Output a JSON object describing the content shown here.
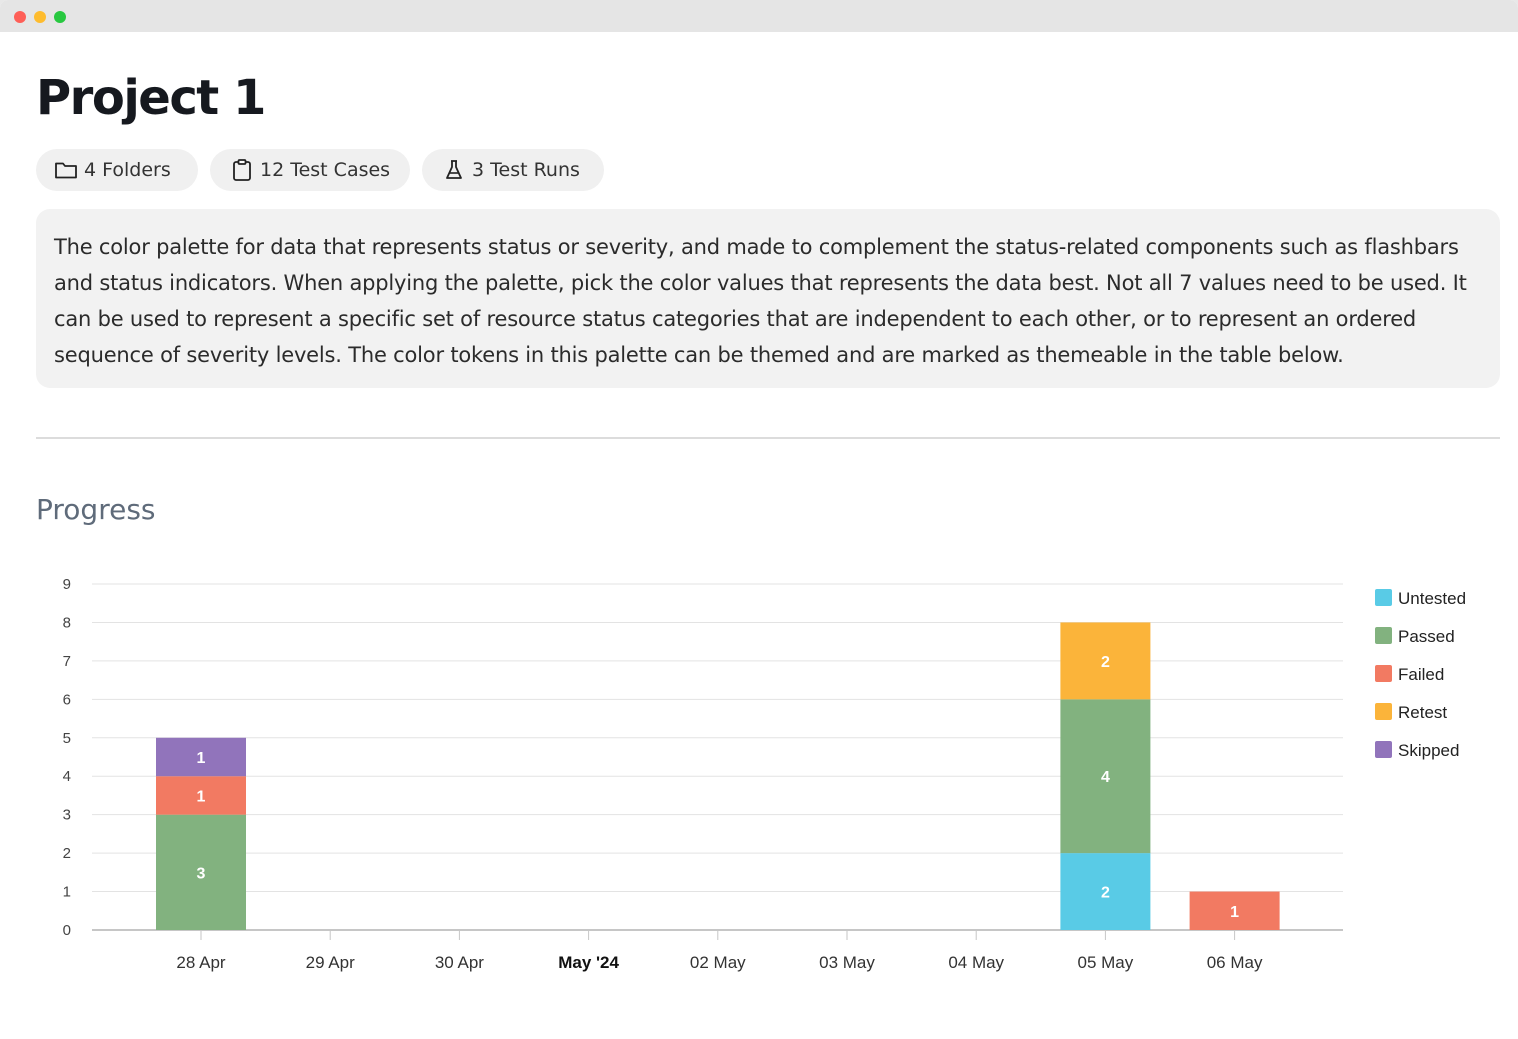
{
  "project": {
    "title": "Project 1",
    "stats": {
      "folders": "4 Folders",
      "test_cases": "12 Test Cases",
      "test_runs": "3 Test Runs"
    },
    "description": "The color palette for data that represents status or severity, and made to complement the status-related components such as flashbars and status indicators. When applying the palette, pick the color values that represents the data best. Not all 7 values need to be used. It can be used to represent a specific set of resource status categories that are independent to each other, or to represent an ordered sequence of severity levels. The color tokens in this palette can be themed and are marked as themeable in the table below."
  },
  "progress": {
    "title": "Progress"
  },
  "icons": {
    "folders": "folder-icon",
    "test_cases": "clipboard-icon",
    "test_runs": "flask-icon"
  },
  "chart_data": {
    "type": "bar",
    "stacked": true,
    "categories": [
      "28 Apr",
      "29 Apr",
      "30 Apr",
      "May '24",
      "02 May",
      "03 May",
      "04 May",
      "05 May",
      "06 May"
    ],
    "bold_categories": [
      "May '24"
    ],
    "ylim": [
      0,
      9
    ],
    "yticks": [
      0,
      1,
      2,
      3,
      4,
      5,
      6,
      7,
      8,
      9
    ],
    "grid": true,
    "legend_position": "right",
    "series": [
      {
        "name": "Untested",
        "color": "#59cbe6",
        "values": [
          0,
          0,
          0,
          0,
          0,
          0,
          0,
          2,
          0
        ]
      },
      {
        "name": "Passed",
        "color": "#82b27f",
        "values": [
          3,
          0,
          0,
          0,
          0,
          0,
          0,
          4,
          0
        ]
      },
      {
        "name": "Failed",
        "color": "#f27a62",
        "values": [
          1,
          0,
          0,
          0,
          0,
          0,
          0,
          0,
          1
        ]
      },
      {
        "name": "Retest",
        "color": "#fbb43a",
        "values": [
          0,
          0,
          0,
          0,
          0,
          0,
          0,
          2,
          0
        ]
      },
      {
        "name": "Skipped",
        "color": "#9174bb",
        "values": [
          1,
          0,
          0,
          0,
          0,
          0,
          0,
          0,
          0
        ]
      }
    ]
  }
}
